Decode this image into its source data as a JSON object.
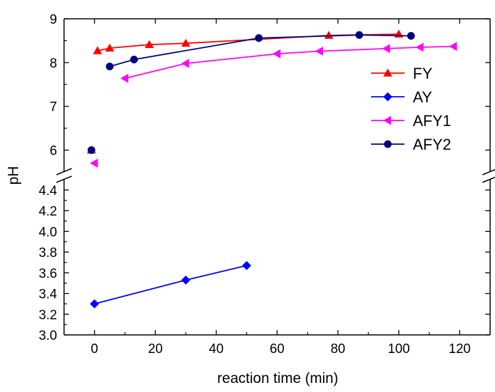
{
  "chart_data": {
    "type": "line",
    "xlabel": "reaction time (min)",
    "ylabel": "pH",
    "xlim": [
      -10,
      130
    ],
    "x_ticks": [
      0,
      20,
      40,
      60,
      80,
      100,
      120
    ],
    "y_axis_break": true,
    "y_upper_range": [
      5.5,
      9
    ],
    "y_upper_ticks": [
      6,
      7,
      8,
      9
    ],
    "y_lower_range": [
      3.0,
      4.5
    ],
    "y_lower_ticks": [
      3.0,
      3.2,
      3.4,
      3.6,
      3.8,
      4.0,
      4.2,
      4.4
    ],
    "legend_position": "right, inside upper panel",
    "series": [
      {
        "name": "FY",
        "color": "#ff0000",
        "marker": "triangle-up",
        "initial_point": {
          "x": -1,
          "y": 6.0
        },
        "x": [
          1,
          5,
          18,
          30,
          77,
          100
        ],
        "y": [
          8.27,
          8.33,
          8.41,
          8.44,
          8.62,
          8.65
        ]
      },
      {
        "name": "AY",
        "color": "#0000ff",
        "marker": "diamond",
        "initial_point": null,
        "x": [
          0,
          30,
          50
        ],
        "y": [
          3.3,
          3.53,
          3.67
        ]
      },
      {
        "name": "AFY1",
        "color": "#ff00ff",
        "marker": "triangle-left",
        "initial_point": {
          "x": 0,
          "y": 5.7
        },
        "x": [
          10,
          30,
          60,
          74,
          96,
          107,
          118
        ],
        "y": [
          7.64,
          7.98,
          8.2,
          8.26,
          8.32,
          8.35,
          8.37
        ]
      },
      {
        "name": "AFY2",
        "color": "#000080",
        "marker": "circle",
        "initial_point": {
          "x": -1,
          "y": 6.0
        },
        "x": [
          5,
          13,
          54,
          87,
          104
        ],
        "y": [
          7.91,
          8.07,
          8.56,
          8.63,
          8.61
        ]
      }
    ]
  }
}
